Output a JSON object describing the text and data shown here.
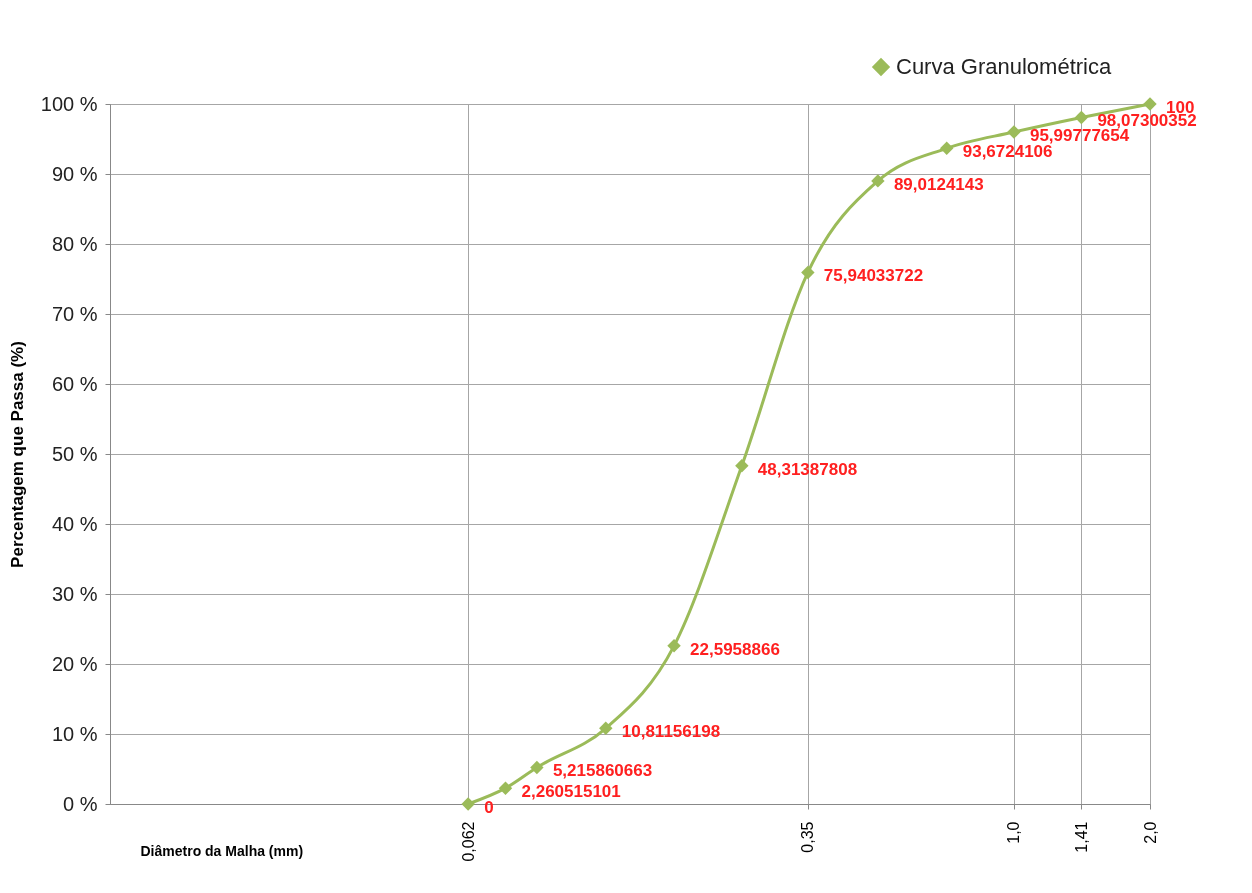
{
  "chart_data": {
    "type": "line",
    "xlabel": "Diâmetro da Malha (mm)",
    "ylabel": "Percentagem que Passa (%)",
    "x": [
      0.062,
      0.075,
      0.088,
      0.125,
      0.177,
      0.25,
      0.35,
      0.5,
      0.71,
      1.0,
      1.41,
      2.0
    ],
    "series": [
      {
        "name": "Curva Granulométrica",
        "color": "#9bbb59",
        "values": [
          0,
          2.260515101,
          5.215860663,
          10.81156198,
          22.5958866,
          48.31387808,
          75.94033722,
          89.0124143,
          93.6724106,
          95.99777654,
          98.07300352,
          100
        ],
        "value_labels": [
          "0",
          "2,260515101",
          "5,215860663",
          "10,81156198",
          "22,5958866",
          "48,31387808",
          "75,94033722",
          "89,0124143",
          "93,6724106",
          "95,99777654",
          "98,07300352",
          "100"
        ]
      }
    ],
    "log": "x",
    "xlim": [
      0.01,
      2.0
    ],
    "xticks": [
      {
        "value": 0.062,
        "label": "0,062"
      },
      {
        "value": 0.35,
        "label": "0,35"
      },
      {
        "value": 1.0,
        "label": "1,0"
      },
      {
        "value": 1.41,
        "label": "1,41"
      },
      {
        "value": 2.0,
        "label": "2,0"
      }
    ],
    "ylim": [
      0,
      100
    ],
    "yticks": [
      {
        "value": 0,
        "label": "0 %"
      },
      {
        "value": 10,
        "label": "10 %"
      },
      {
        "value": 20,
        "label": "20 %"
      },
      {
        "value": 30,
        "label": "30 %"
      },
      {
        "value": 40,
        "label": "40 %"
      },
      {
        "value": 50,
        "label": "50 %"
      },
      {
        "value": 60,
        "label": "60 %"
      },
      {
        "value": 70,
        "label": "70 %"
      },
      {
        "value": 80,
        "label": "80 %"
      },
      {
        "value": 90,
        "label": "90 %"
      },
      {
        "value": 100,
        "label": "100 %"
      }
    ],
    "grid": true,
    "legend": "top right",
    "marker": "diamond",
    "line_style": "solid"
  }
}
